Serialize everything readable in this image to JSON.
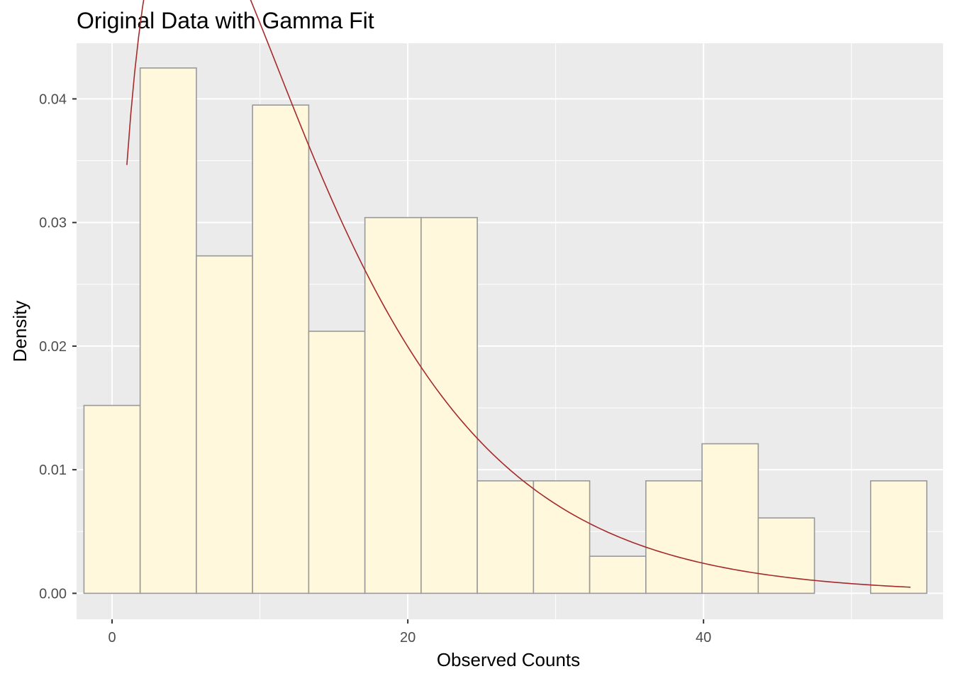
{
  "chart_data": {
    "type": "bar",
    "title": "Original Data with Gamma Fit",
    "xlabel": "Observed Counts",
    "ylabel": "Density",
    "xlim": [
      -2.4,
      56.2
    ],
    "ylim": [
      -0.0021,
      0.0445
    ],
    "x_ticks": [
      0,
      20,
      40
    ],
    "x_tick_labels": [
      "0",
      "20",
      "40"
    ],
    "y_ticks": [
      0.0,
      0.01,
      0.02,
      0.03,
      0.04
    ],
    "y_tick_labels": [
      "0.00",
      "0.01",
      "0.02",
      "0.03",
      "0.04"
    ],
    "grid": true,
    "background": "#ebebeb",
    "bar_fill": "#fff8dc",
    "bar_outline": "#999999",
    "curve_color": "#a52a2a",
    "bins": [
      {
        "x0": -1.9,
        "x1": 1.9,
        "density": 0.0152
      },
      {
        "x0": 1.9,
        "x1": 5.7,
        "density": 0.0425
      },
      {
        "x0": 5.7,
        "x1": 9.5,
        "density": 0.0273
      },
      {
        "x0": 9.5,
        "x1": 13.3,
        "density": 0.0395
      },
      {
        "x0": 13.3,
        "x1": 17.1,
        "density": 0.0212
      },
      {
        "x0": 17.1,
        "x1": 20.9,
        "density": 0.0304
      },
      {
        "x0": 20.9,
        "x1": 24.7,
        "density": 0.0304
      },
      {
        "x0": 24.7,
        "x1": 28.5,
        "density": 0.0091
      },
      {
        "x0": 28.5,
        "x1": 32.3,
        "density": 0.0091
      },
      {
        "x0": 32.3,
        "x1": 36.1,
        "density": 0.003
      },
      {
        "x0": 36.1,
        "x1": 39.9,
        "density": 0.0091
      },
      {
        "x0": 39.9,
        "x1": 43.7,
        "density": 0.0121
      },
      {
        "x0": 43.7,
        "x1": 47.5,
        "density": 0.0061
      },
      {
        "x0": 47.5,
        "x1": 51.3,
        "density": 0.0
      },
      {
        "x0": 51.3,
        "x1": 55.1,
        "density": 0.0091
      }
    ],
    "gamma_fit": {
      "shape": 1.62,
      "rate": 0.1268,
      "x_range": [
        1.0,
        54.0
      ]
    }
  }
}
